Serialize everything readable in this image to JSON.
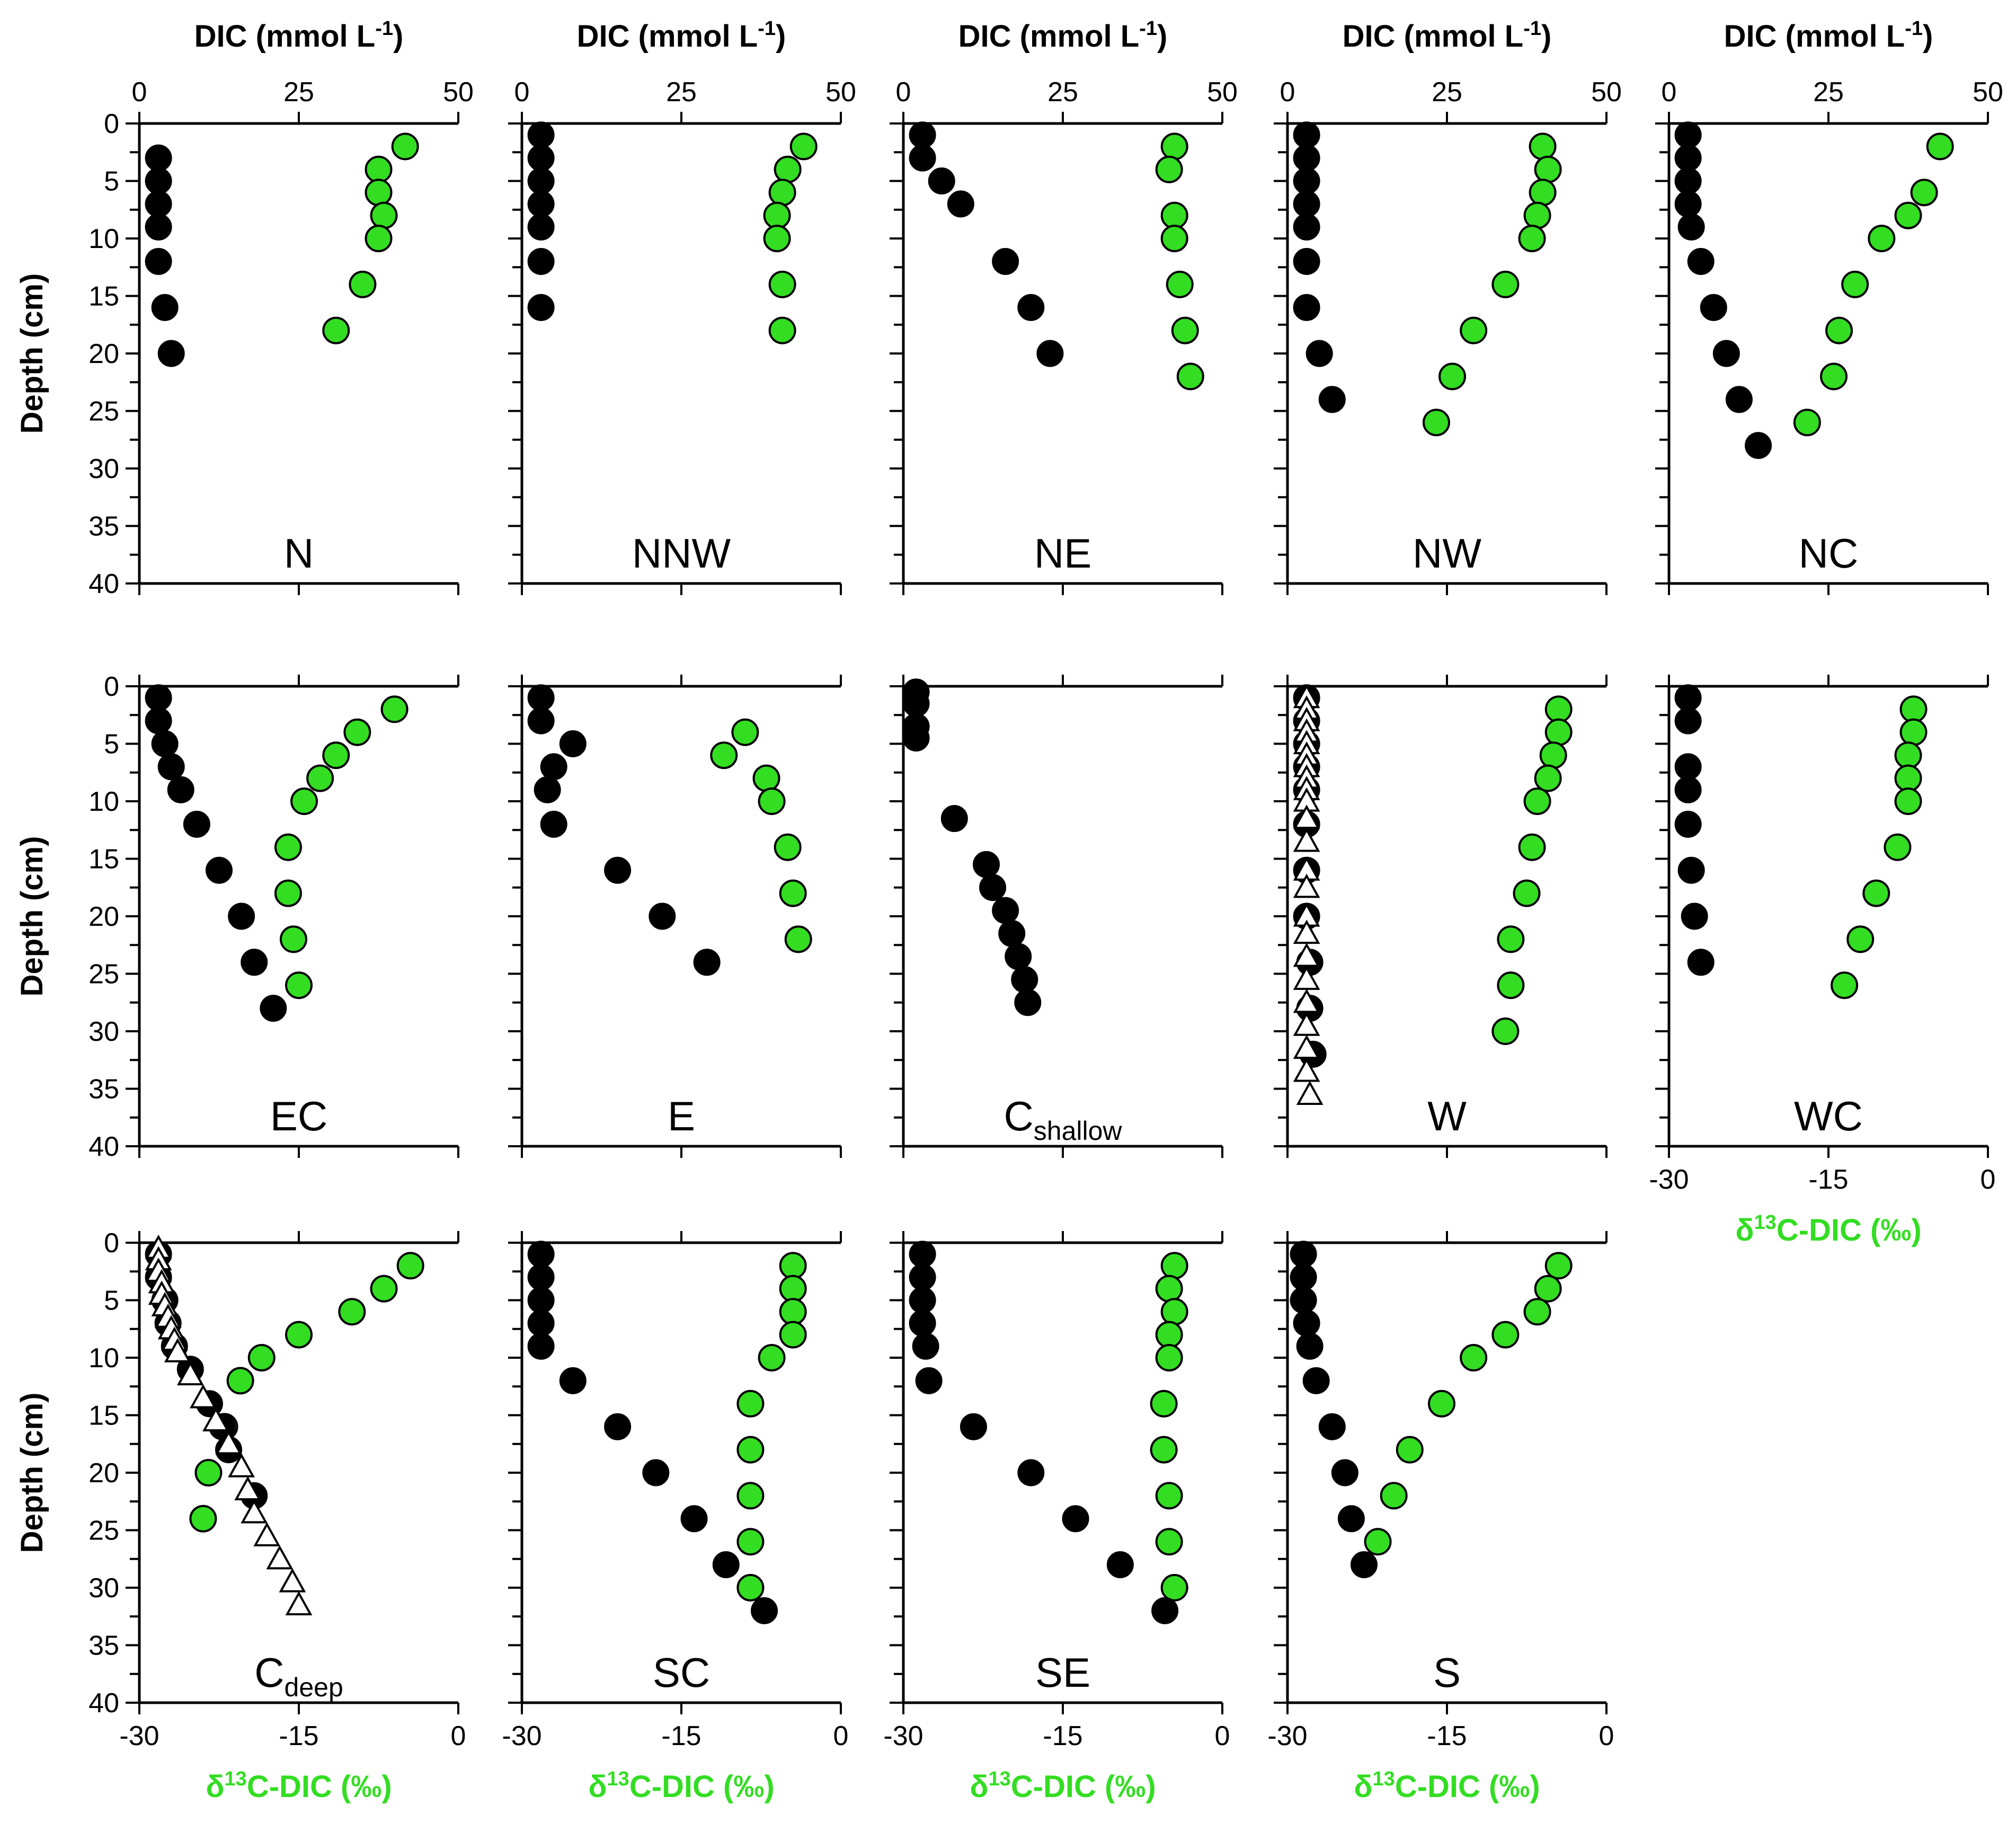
{
  "top_axis_label": "DIC (mmol L",
  "top_axis_sup": "-1",
  "top_axis_close": ")",
  "top_axis_ticks": [
    "0",
    "25",
    "50"
  ],
  "bottom_axis_prefix": "δ",
  "bottom_axis_sup": "13",
  "bottom_axis_rest": "C-DIC (‰)",
  "bottom_axis_ticks": [
    "-30",
    "-15",
    "0"
  ],
  "y_axis_label": "Depth (cm)",
  "y_axis_ticks": [
    "0",
    "5",
    "10",
    "15",
    "20",
    "25",
    "30",
    "35",
    "40"
  ],
  "colors": {
    "dic": "#000000",
    "d13c": "#33dd22",
    "axis": "#000000",
    "bottom_label": "#33dd22"
  },
  "chart_data": {
    "type": "scatter",
    "x_top": {
      "label": "DIC (mmol L-1)",
      "range": [
        0,
        50
      ]
    },
    "x_bottom": {
      "label": "δ13C-DIC (‰)",
      "range": [
        -30,
        0
      ]
    },
    "y": {
      "label": "Depth (cm)",
      "range": [
        0,
        40
      ],
      "inverted": true
    },
    "legend": "none",
    "panels": [
      {
        "site": "N",
        "dic": [
          [
            3,
            3
          ],
          [
            3,
            5
          ],
          [
            3,
            7
          ],
          [
            3,
            9
          ],
          [
            3,
            12
          ],
          [
            4,
            16
          ],
          [
            5,
            20
          ]
        ],
        "d13c": [
          [
            -5,
            2
          ],
          [
            -7.5,
            4
          ],
          [
            -7.5,
            6
          ],
          [
            -7,
            8
          ],
          [
            -7.5,
            10
          ],
          [
            -9,
            14
          ],
          [
            -11.5,
            18
          ]
        ]
      },
      {
        "site": "NNW",
        "dic": [
          [
            3,
            1
          ],
          [
            3,
            3
          ],
          [
            3,
            5
          ],
          [
            3,
            7
          ],
          [
            3,
            9
          ],
          [
            3,
            12
          ],
          [
            3,
            16
          ]
        ],
        "d13c": [
          [
            -3.5,
            2
          ],
          [
            -5,
            4
          ],
          [
            -5.5,
            6
          ],
          [
            -6,
            8
          ],
          [
            -6,
            10
          ],
          [
            -5.5,
            14
          ],
          [
            -5.5,
            18
          ]
        ]
      },
      {
        "site": "NE",
        "dic": [
          [
            3,
            1
          ],
          [
            3,
            3
          ],
          [
            6,
            5
          ],
          [
            9,
            7
          ],
          [
            16,
            12
          ],
          [
            20,
            16
          ],
          [
            23,
            20
          ]
        ],
        "d13c": [
          [
            -4.5,
            2
          ],
          [
            -5,
            4
          ],
          [
            -4.5,
            8
          ],
          [
            -4.5,
            10
          ],
          [
            -4,
            14
          ],
          [
            -3.5,
            18
          ],
          [
            -3,
            22
          ]
        ]
      },
      {
        "site": "NW",
        "dic": [
          [
            3,
            1
          ],
          [
            3,
            3
          ],
          [
            3,
            5
          ],
          [
            3,
            7
          ],
          [
            3,
            9
          ],
          [
            3,
            12
          ],
          [
            3,
            16
          ],
          [
            5,
            20
          ],
          [
            7,
            24
          ]
        ],
        "d13c": [
          [
            -6,
            2
          ],
          [
            -5.5,
            4
          ],
          [
            -6,
            6
          ],
          [
            -6.5,
            8
          ],
          [
            -7,
            10
          ],
          [
            -9.5,
            14
          ],
          [
            -12.5,
            18
          ],
          [
            -14.5,
            22
          ],
          [
            -16,
            26
          ]
        ]
      },
      {
        "site": "NC",
        "dic": [
          [
            3,
            1
          ],
          [
            3,
            3
          ],
          [
            3,
            5
          ],
          [
            3,
            7
          ],
          [
            3.5,
            9
          ],
          [
            5,
            12
          ],
          [
            7,
            16
          ],
          [
            9,
            20
          ],
          [
            11,
            24
          ],
          [
            14,
            28
          ]
        ],
        "d13c": [
          [
            -4.5,
            2
          ],
          [
            -6,
            6
          ],
          [
            -7.5,
            8
          ],
          [
            -10,
            10
          ],
          [
            -12.5,
            14
          ],
          [
            -14,
            18
          ],
          [
            -14.5,
            22
          ],
          [
            -17,
            26
          ]
        ]
      },
      {
        "site": "EC",
        "dic": [
          [
            3,
            1
          ],
          [
            3,
            3
          ],
          [
            4,
            5
          ],
          [
            5,
            7
          ],
          [
            6.5,
            9
          ],
          [
            9,
            12
          ],
          [
            12.5,
            16
          ],
          [
            16,
            20
          ],
          [
            18,
            24
          ],
          [
            21,
            28
          ]
        ],
        "d13c": [
          [
            -6,
            2
          ],
          [
            -9.5,
            4
          ],
          [
            -11.5,
            6
          ],
          [
            -13,
            8
          ],
          [
            -14.5,
            10
          ],
          [
            -16,
            14
          ],
          [
            -16,
            18
          ],
          [
            -15.5,
            22
          ],
          [
            -15,
            26
          ]
        ]
      },
      {
        "site": "E",
        "dic": [
          [
            3,
            1
          ],
          [
            3,
            3
          ],
          [
            8,
            5
          ],
          [
            5,
            7
          ],
          [
            4,
            9
          ],
          [
            5,
            12
          ],
          [
            15,
            16
          ],
          [
            22,
            20
          ],
          [
            29,
            24
          ]
        ],
        "d13c": [
          [
            -9,
            4
          ],
          [
            -11,
            6
          ],
          [
            -7,
            8
          ],
          [
            -6.5,
            10
          ],
          [
            -5,
            14
          ],
          [
            -4.5,
            18
          ],
          [
            -4,
            22
          ]
        ]
      },
      {
        "site": "C",
        "site_sub": "shallow",
        "dic": [
          [
            2,
            0.5
          ],
          [
            2,
            1.5
          ],
          [
            2,
            3.5
          ],
          [
            2,
            4.5
          ],
          [
            8,
            11.5
          ],
          [
            13,
            15.5
          ],
          [
            14,
            17.5
          ],
          [
            16,
            19.5
          ],
          [
            17,
            21.5
          ],
          [
            18,
            23.5
          ],
          [
            19,
            25.5
          ],
          [
            19.5,
            27.5
          ]
        ],
        "d13c": []
      },
      {
        "site": "W",
        "dic": [
          [
            3,
            1
          ],
          [
            3,
            3
          ],
          [
            3,
            5
          ],
          [
            3,
            7
          ],
          [
            3,
            9
          ],
          [
            3,
            12
          ],
          [
            3,
            16
          ],
          [
            3,
            20
          ],
          [
            3.5,
            24
          ],
          [
            3.5,
            28
          ],
          [
            4,
            32
          ]
        ],
        "d13c": [
          [
            -4.5,
            2
          ],
          [
            -4.5,
            4
          ],
          [
            -5,
            6
          ],
          [
            -5.5,
            8
          ],
          [
            -6.5,
            10
          ],
          [
            -7,
            14
          ],
          [
            -7.5,
            18
          ],
          [
            -9,
            22
          ],
          [
            -9,
            26
          ],
          [
            -9.5,
            30
          ]
        ],
        "open_triangles": [
          [
            3,
            1
          ],
          [
            3,
            2
          ],
          [
            3,
            3
          ],
          [
            3,
            4
          ],
          [
            3,
            5
          ],
          [
            3,
            6
          ],
          [
            3,
            7
          ],
          [
            3,
            8
          ],
          [
            3,
            9
          ],
          [
            3,
            10
          ],
          [
            3,
            11.5
          ],
          [
            3,
            13.5
          ],
          [
            3,
            16
          ],
          [
            3,
            17.5
          ],
          [
            3,
            20
          ],
          [
            3,
            21.5
          ],
          [
            3,
            23.5
          ],
          [
            3,
            25.5
          ],
          [
            3,
            27.5
          ],
          [
            3,
            29.5
          ],
          [
            3,
            31.5
          ],
          [
            3,
            33.5
          ],
          [
            3.5,
            35.5
          ]
        ]
      },
      {
        "site": "WC",
        "dic": [
          [
            3,
            1
          ],
          [
            3,
            3
          ],
          [
            3,
            7
          ],
          [
            3,
            9
          ],
          [
            3,
            12
          ],
          [
            3.5,
            16
          ],
          [
            4,
            20
          ],
          [
            5,
            24
          ]
        ],
        "d13c": [
          [
            -7,
            2
          ],
          [
            -7,
            4
          ],
          [
            -7.5,
            6
          ],
          [
            -7.5,
            8
          ],
          [
            -7.5,
            10
          ],
          [
            -8.5,
            14
          ],
          [
            -10.5,
            18
          ],
          [
            -12,
            22
          ],
          [
            -13.5,
            26
          ]
        ]
      },
      {
        "site": "C",
        "site_sub": "deep",
        "dic": [
          [
            3,
            1
          ],
          [
            3,
            3
          ],
          [
            4,
            5
          ],
          [
            4.5,
            7
          ],
          [
            5.5,
            9
          ],
          [
            8,
            11
          ],
          [
            11,
            14
          ],
          [
            13,
            16
          ],
          [
            14,
            18
          ],
          [
            18,
            22
          ]
        ],
        "d13c": [
          [
            -4.5,
            2
          ],
          [
            -7,
            4
          ],
          [
            -10,
            6
          ],
          [
            -15,
            8
          ],
          [
            -18.5,
            10
          ],
          [
            -20.5,
            12
          ],
          [
            -22,
            16
          ],
          [
            -23.5,
            20
          ],
          [
            -24,
            24
          ]
        ],
        "open_triangles": [
          [
            3,
            0.5
          ],
          [
            3,
            1.5
          ],
          [
            3,
            2.5
          ],
          [
            3.5,
            3.5
          ],
          [
            3.5,
            4.5
          ],
          [
            4,
            5.5
          ],
          [
            4.5,
            6.5
          ],
          [
            5,
            7.5
          ],
          [
            5.5,
            8.5
          ],
          [
            6,
            9.5
          ],
          [
            8,
            11.5
          ],
          [
            10,
            13.5
          ],
          [
            12,
            15.5
          ],
          [
            14,
            17.5
          ],
          [
            16,
            19.5
          ],
          [
            17,
            21.5
          ],
          [
            18,
            23.5
          ],
          [
            20,
            25.5
          ],
          [
            22,
            27.5
          ],
          [
            24,
            29.5
          ],
          [
            25,
            31.5
          ]
        ]
      },
      {
        "site": "SC",
        "dic": [
          [
            3,
            1
          ],
          [
            3,
            3
          ],
          [
            3,
            5
          ],
          [
            3,
            7
          ],
          [
            3,
            9
          ],
          [
            8,
            12
          ],
          [
            15,
            16
          ],
          [
            21,
            20
          ],
          [
            27,
            24
          ],
          [
            32,
            28
          ],
          [
            38,
            32
          ]
        ],
        "d13c": [
          [
            -4.5,
            2
          ],
          [
            -4.5,
            4
          ],
          [
            -4.5,
            6
          ],
          [
            -4.5,
            8
          ],
          [
            -6.5,
            10
          ],
          [
            -8.5,
            14
          ],
          [
            -8.5,
            18
          ],
          [
            -8.5,
            22
          ],
          [
            -8.5,
            26
          ],
          [
            -8.5,
            30
          ]
        ]
      },
      {
        "site": "SE",
        "dic": [
          [
            3,
            1
          ],
          [
            3,
            3
          ],
          [
            3,
            5
          ],
          [
            3,
            7
          ],
          [
            3.5,
            9
          ],
          [
            4,
            12
          ],
          [
            11,
            16
          ],
          [
            20,
            20
          ],
          [
            27,
            24
          ],
          [
            34,
            28
          ],
          [
            41,
            32
          ]
        ],
        "d13c": [
          [
            -4.5,
            2
          ],
          [
            -5,
            4
          ],
          [
            -4.5,
            6
          ],
          [
            -5,
            8
          ],
          [
            -5,
            10
          ],
          [
            -5.5,
            14
          ],
          [
            -5.5,
            18
          ],
          [
            -5,
            22
          ],
          [
            -5,
            26
          ],
          [
            -4.5,
            30
          ]
        ]
      },
      {
        "site": "S",
        "dic": [
          [
            2.5,
            1
          ],
          [
            2.5,
            3
          ],
          [
            2.5,
            5
          ],
          [
            3,
            7
          ],
          [
            3.5,
            9
          ],
          [
            4.5,
            12
          ],
          [
            7,
            16
          ],
          [
            9,
            20
          ],
          [
            10,
            24
          ],
          [
            12,
            28
          ]
        ],
        "d13c": [
          [
            -4.5,
            2
          ],
          [
            -5.5,
            4
          ],
          [
            -6.5,
            6
          ],
          [
            -9.5,
            8
          ],
          [
            -12.5,
            10
          ],
          [
            -15.5,
            14
          ],
          [
            -18.5,
            18
          ],
          [
            -20,
            22
          ],
          [
            -21.5,
            26
          ]
        ]
      }
    ]
  }
}
